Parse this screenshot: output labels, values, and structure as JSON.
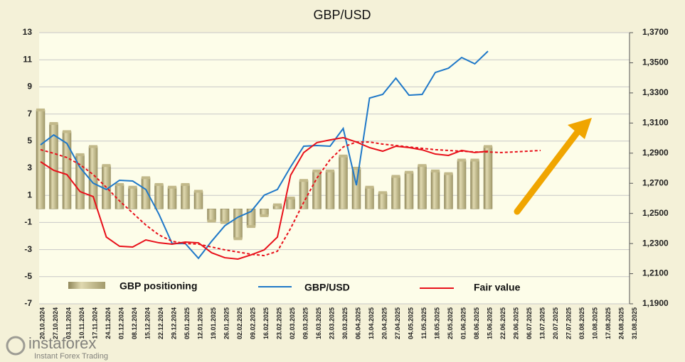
{
  "chart_data": {
    "type": "bar-line",
    "title": "GBP/USD",
    "categories": [
      "20.10.2024",
      "27.10.2024",
      "03.11.2024",
      "10.11.2024",
      "17.11.2024",
      "24.11.2024",
      "01.12.2024",
      "08.12.2024",
      "15.12.2024",
      "22.12.2024",
      "29.12.2024",
      "05.01.2025",
      "12.01.2025",
      "19.01.2025",
      "26.01.2025",
      "02.02.2025",
      "09.02.2025",
      "16.02.2025",
      "23.02.2025",
      "02.03.2025",
      "09.03.2025",
      "16.03.2025",
      "23.03.2025",
      "30.03.2025",
      "06.04.2025",
      "13.04.2025",
      "20.04.2025",
      "27.04.2025",
      "04.05.2025",
      "11.05.2025",
      "18.05.2025",
      "25.05.2025",
      "01.06.2025",
      "08.06.2025",
      "15.06.2025",
      "22.06.2025",
      "29.06.2025",
      "06.07.2025",
      "13.07.2025",
      "20.07.2025",
      "27.07.2025",
      "03.08.2025",
      "10.08.2025",
      "17.08.2025",
      "24.08.2025",
      "31.08.2025"
    ],
    "series": [
      {
        "name": "GBP positioning",
        "kind": "bar",
        "color": "#c2b98a",
        "values": [
          7.3,
          6.3,
          5.7,
          4.0,
          4.6,
          3.2,
          1.8,
          1.6,
          2.3,
          1.8,
          1.6,
          1.8,
          1.3,
          -0.9,
          -1.0,
          -2.2,
          -1.3,
          -0.5,
          0.3,
          0.8,
          2.1,
          2.8,
          2.8,
          3.9,
          3.0,
          1.6,
          1.2,
          2.4,
          2.7,
          3.2,
          2.8,
          2.6,
          3.6,
          3.6,
          4.6,
          null,
          null,
          null,
          null,
          null,
          null,
          null,
          null,
          null,
          null,
          null
        ]
      },
      {
        "name": "GBP/USD",
        "kind": "line",
        "axis": "y2",
        "color": "#1f78c8",
        "values": [
          1.2955,
          1.3021,
          1.2965,
          1.2805,
          1.2701,
          1.2659,
          1.272,
          1.2715,
          1.2659,
          1.2494,
          1.23,
          1.23,
          1.2202,
          1.2315,
          1.2418,
          1.2475,
          1.2513,
          1.2621,
          1.2659,
          1.2809,
          1.2946,
          1.2951,
          1.2946,
          1.3064,
          1.2687,
          1.3266,
          1.329,
          1.3398,
          1.3285,
          1.329,
          1.3436,
          1.3464,
          1.3535,
          1.3493,
          1.3577,
          null,
          null,
          null,
          null,
          null,
          null,
          null,
          null,
          null,
          null,
          null
        ]
      },
      {
        "name": "Fair value",
        "kind": "line",
        "axis": "y2",
        "color": "#e8101a",
        "values": [
          1.2843,
          1.2786,
          1.2758,
          1.2645,
          1.2612,
          1.2343,
          1.2282,
          1.2277,
          1.2324,
          1.2305,
          1.2296,
          1.231,
          1.2305,
          1.2239,
          1.2206,
          1.2197,
          1.2225,
          1.2258,
          1.2343,
          1.2753,
          1.2904,
          1.297,
          1.2988,
          1.3003,
          1.2974,
          1.2937,
          1.2913,
          1.2946,
          1.2937,
          1.2922,
          1.2894,
          1.2885,
          1.2918,
          1.2904,
          1.2913,
          null,
          null,
          null,
          null,
          null,
          null,
          null,
          null,
          null,
          null,
          null
        ]
      },
      {
        "kind": "line",
        "axis": "y2",
        "dashed": true,
        "color": "#e8101a",
        "values": [
          1.2923,
          1.2899,
          1.2871,
          1.2824,
          1.2758,
          1.2673,
          1.2583,
          1.2503,
          1.2423,
          1.2357,
          1.2315,
          1.23,
          1.2296,
          1.2277,
          1.2258,
          1.2244,
          1.2229,
          1.222,
          1.2249,
          1.24,
          1.2574,
          1.2734,
          1.2857,
          1.2941,
          1.2974,
          1.2974,
          1.296,
          1.2951,
          1.2941,
          1.2932,
          1.2923,
          1.2918,
          1.2913,
          1.2908,
          1.2908,
          1.2904,
          1.2908,
          1.2913,
          1.2918,
          null,
          null,
          null,
          null,
          null,
          null,
          null
        ]
      }
    ],
    "ylim": [
      -7,
      13
    ],
    "yticks": [
      -7,
      -5,
      -3,
      -1,
      1,
      3,
      5,
      7,
      9,
      11,
      13
    ],
    "y2lim": [
      1.19,
      1.37
    ],
    "y2ticks": [
      {
        "value": 1.19,
        "label": "1,1900"
      },
      {
        "value": 1.21,
        "label": "1,2100"
      },
      {
        "value": 1.23,
        "label": "1,2300"
      },
      {
        "value": 1.25,
        "label": "1,2500"
      },
      {
        "value": 1.27,
        "label": "1,2700"
      },
      {
        "value": 1.29,
        "label": "1,2900"
      },
      {
        "value": 1.31,
        "label": "1,3100"
      },
      {
        "value": 1.33,
        "label": "1,3300"
      },
      {
        "value": 1.35,
        "label": "1,3500"
      },
      {
        "value": 1.37,
        "label": "1,3700"
      }
    ],
    "grid": true
  },
  "watermark": {
    "brand": "instaforex",
    "tagline": "Instant Forex Trading"
  }
}
